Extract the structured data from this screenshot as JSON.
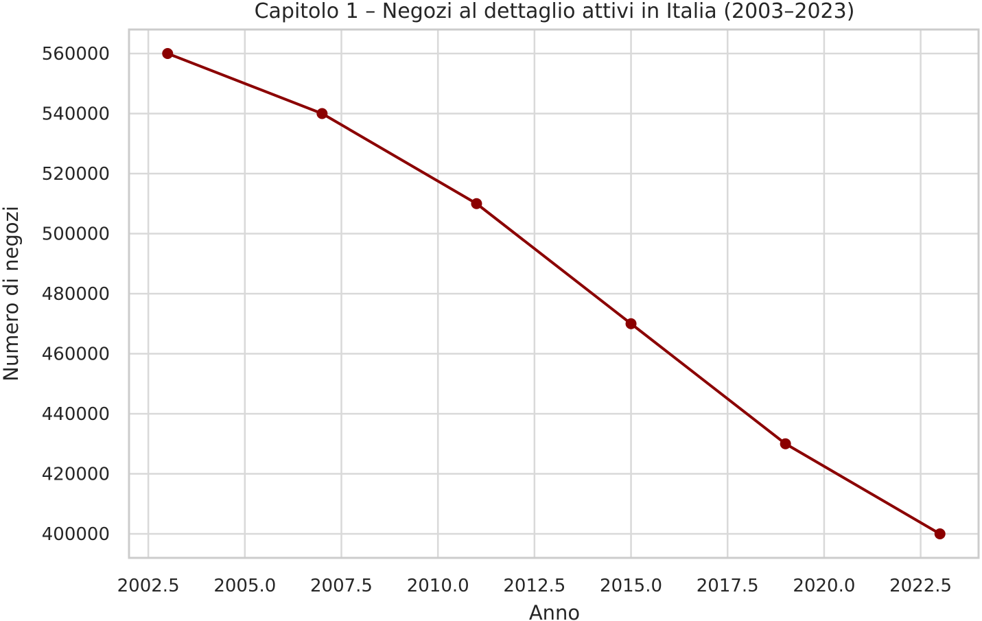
{
  "chart_data": {
    "type": "line",
    "title": "Capitolo 1 – Negozi al dettaglio attivi in Italia (2003–2023)",
    "xlabel": "Anno",
    "ylabel": "Numero di negozi",
    "x": [
      2003,
      2007,
      2011,
      2015,
      2019,
      2023
    ],
    "series": [
      {
        "values": [
          560000,
          540000,
          510000,
          470000,
          430000,
          400000
        ],
        "color": "#8b0000"
      }
    ],
    "xlim": [
      2002.0,
      2024.0
    ],
    "ylim": [
      392000,
      568000
    ],
    "xticks": [
      2002.5,
      2005.0,
      2007.5,
      2010.0,
      2012.5,
      2015.0,
      2017.5,
      2020.0,
      2022.5
    ],
    "xtick_labels": [
      "2002.5",
      "2005.0",
      "2007.5",
      "2010.0",
      "2012.5",
      "2015.0",
      "2017.5",
      "2020.0",
      "2022.5"
    ],
    "yticks": [
      400000,
      420000,
      440000,
      460000,
      480000,
      500000,
      520000,
      540000,
      560000
    ],
    "ytick_labels": [
      "400000",
      "420000",
      "440000",
      "460000",
      "480000",
      "500000",
      "520000",
      "540000",
      "560000"
    ],
    "grid": true,
    "legend": "none"
  }
}
